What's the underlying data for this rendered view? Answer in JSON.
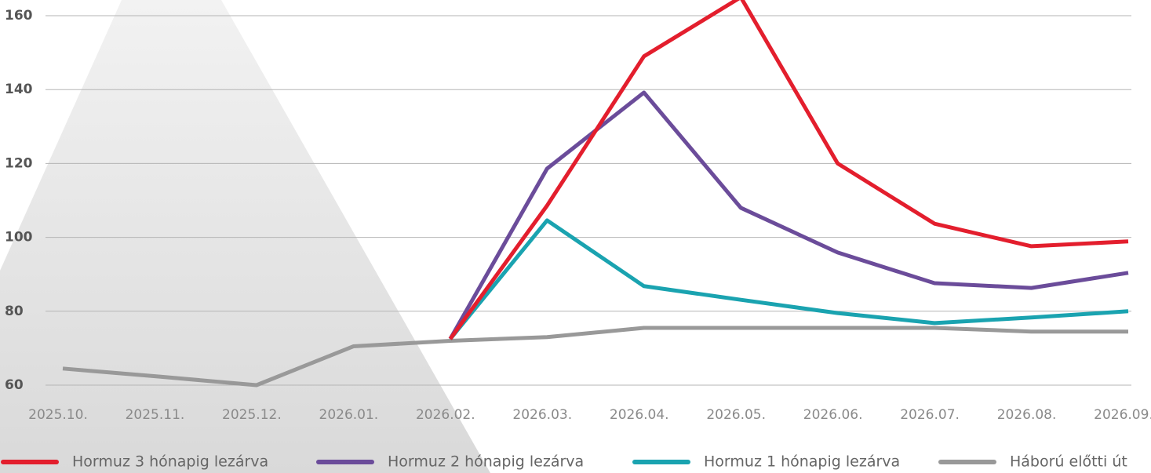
{
  "chart_data": {
    "type": "line",
    "categories": [
      "2025.10.",
      "2025.11.",
      "2025.12.",
      "2026.01.",
      "2026.02.",
      "2026.03.",
      "2026.04.",
      "2026.05.",
      "2026.06.",
      "2026.07.",
      "2026.08.",
      "2026.09."
    ],
    "series": [
      {
        "name": "Hormuz 3 hónapig lezárva",
        "color": "#e31e2d",
        "values": [
          null,
          null,
          null,
          null,
          72.5,
          108.6,
          149,
          165,
          120,
          103.7,
          97.6,
          98.9
        ]
      },
      {
        "name": "Hormuz 2 hónapig lezárva",
        "color": "#6b4c9a",
        "values": [
          null,
          null,
          null,
          null,
          72.5,
          118.6,
          139.2,
          108,
          95.9,
          87.6,
          86.3,
          90.4
        ]
      },
      {
        "name": "Hormuz 1 hónapig lezárva",
        "color": "#1aa3b0",
        "values": [
          null,
          null,
          null,
          null,
          72.5,
          104.6,
          86.8,
          83.1,
          79.5,
          76.8,
          78.3,
          80
        ]
      },
      {
        "name": "Háború előtti út",
        "color": "#999999",
        "values": [
          64.5,
          62.3,
          60,
          70.5,
          72,
          73,
          75.5,
          75.5,
          75.5,
          75.5,
          74.5,
          74.5
        ]
      }
    ],
    "ylim": [
      60,
      160
    ],
    "yticks": [
      60,
      80,
      100,
      120,
      140,
      160
    ],
    "grid": true,
    "legend": "bottom"
  }
}
